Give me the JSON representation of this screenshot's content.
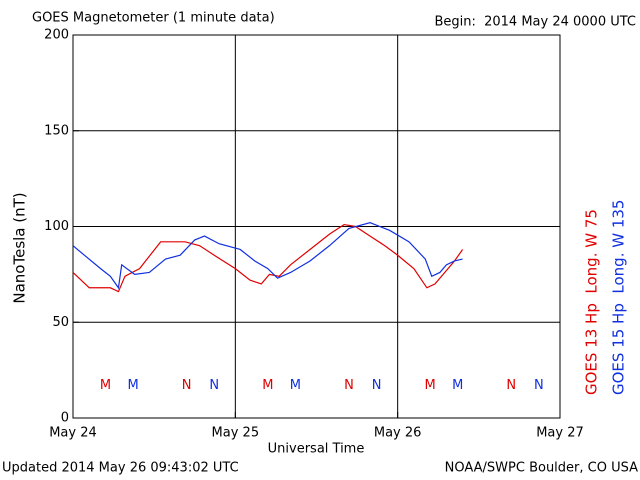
{
  "chart_data": {
    "type": "line",
    "title": "GOES Magnetometer (1 minute data)",
    "subtitle": "Begin:  2014 May 24 0000 UTC",
    "ylabel": "NanoTesla (nT)",
    "xlabel": "Universal Time",
    "footer_left": "Updated 2014 May 26 09:43:02 UTC",
    "footer_right": "NOAA/SWPC Boulder, CO USA",
    "xlim": [
      0,
      3
    ],
    "xticks": [
      {
        "value": 0,
        "label": "May 24"
      },
      {
        "value": 1,
        "label": "May 25"
      },
      {
        "value": 2,
        "label": "May 26"
      },
      {
        "value": 3,
        "label": "May 27"
      }
    ],
    "ylim": [
      0,
      200
    ],
    "yticks": [
      0,
      50,
      100,
      150,
      200
    ],
    "grid": true,
    "series": [
      {
        "name": "GOES 13 Hp  Long. W 75",
        "color": "#e00000",
        "x": [
          0,
          0.1,
          0.23,
          0.28,
          0.32,
          0.41,
          0.54,
          0.69,
          0.78,
          0.87,
          1.0,
          1.09,
          1.16,
          1.21,
          1.27,
          1.34,
          1.46,
          1.58,
          1.67,
          1.74,
          1.83,
          1.92,
          2.0,
          2.1,
          2.18,
          2.23,
          2.29,
          2.35,
          2.4
        ],
        "values": [
          76,
          68,
          68,
          66,
          74,
          78,
          92,
          92,
          90,
          85,
          78,
          72,
          70,
          75,
          74,
          80,
          88,
          96,
          101,
          100,
          95,
          90,
          85,
          78,
          68,
          70,
          76,
          82,
          88
        ]
      },
      {
        "name": "GOES 15 Hp  Long. W 135",
        "color": "#1030e0",
        "x": [
          0,
          0.07,
          0.17,
          0.23,
          0.28,
          0.3,
          0.38,
          0.47,
          0.57,
          0.66,
          0.75,
          0.81,
          0.9,
          1.03,
          1.12,
          1.2,
          1.26,
          1.34,
          1.46,
          1.58,
          1.7,
          1.83,
          1.95,
          2.07,
          2.17,
          2.21,
          2.26,
          2.3,
          2.35,
          2.4
        ],
        "values": [
          90,
          85,
          78,
          74,
          68,
          80,
          75,
          76,
          83,
          85,
          93,
          95,
          91,
          88,
          82,
          78,
          73,
          76,
          82,
          90,
          99,
          102,
          98,
          92,
          83,
          74,
          76,
          80,
          82,
          83
        ]
      }
    ],
    "annotations": [
      {
        "text": "M",
        "x": 0.2,
        "y": 17,
        "color": "#e00000"
      },
      {
        "text": "M",
        "x": 0.37,
        "y": 17,
        "color": "#1030e0"
      },
      {
        "text": "N",
        "x": 0.7,
        "y": 17,
        "color": "#e00000"
      },
      {
        "text": "N",
        "x": 0.87,
        "y": 17,
        "color": "#1030e0"
      },
      {
        "text": "M",
        "x": 1.2,
        "y": 17,
        "color": "#e00000"
      },
      {
        "text": "M",
        "x": 1.37,
        "y": 17,
        "color": "#1030e0"
      },
      {
        "text": "N",
        "x": 1.7,
        "y": 17,
        "color": "#e00000"
      },
      {
        "text": "N",
        "x": 1.87,
        "y": 17,
        "color": "#1030e0"
      },
      {
        "text": "M",
        "x": 2.2,
        "y": 17,
        "color": "#e00000"
      },
      {
        "text": "M",
        "x": 2.37,
        "y": 17,
        "color": "#1030e0"
      },
      {
        "text": "N",
        "x": 2.7,
        "y": 17,
        "color": "#e00000"
      },
      {
        "text": "N",
        "x": 2.87,
        "y": 17,
        "color": "#1030e0"
      }
    ]
  }
}
